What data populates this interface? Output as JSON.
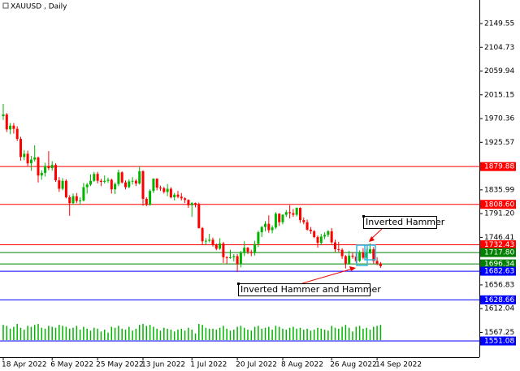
{
  "chart_data": {
    "type": "candlestick",
    "title": "XAUUSD , Daily",
    "categories": [
      "18 Apr 2022",
      null,
      null,
      null,
      null,
      null,
      null,
      null,
      null,
      null,
      null,
      null,
      null,
      null,
      "6 May 2022",
      null,
      null,
      null,
      null,
      null,
      null,
      null,
      null,
      null,
      null,
      null,
      null,
      "25 May 2022",
      null,
      null,
      null,
      null,
      null,
      null,
      null,
      null,
      null,
      null,
      null,
      null,
      "13 Jun 2022",
      null,
      null,
      null,
      null,
      null,
      null,
      null,
      null,
      null,
      null,
      null,
      null,
      null,
      "1 Jul 2022",
      null,
      null,
      null,
      null,
      null,
      null,
      null,
      null,
      null,
      null,
      null,
      null,
      "20 Jul 2022",
      null,
      null,
      null,
      null,
      null,
      null,
      null,
      null,
      null,
      null,
      null,
      null,
      "8 Aug 2022",
      null,
      null,
      null,
      null,
      null,
      null,
      null,
      null,
      null,
      null,
      null,
      null,
      null,
      "26 Aug 2022",
      null,
      null,
      null,
      null,
      null,
      null,
      null,
      null,
      null,
      null,
      null,
      null,
      "14 Sep 2022",
      null
    ],
    "open": [
      1975,
      1978,
      1950,
      1957,
      1951,
      1932,
      1898,
      1904,
      1886,
      1893,
      1897,
      1863,
      1868,
      1881,
      1877,
      1883,
      1854,
      1838,
      1853,
      1822,
      1811,
      1824,
      1815,
      1816,
      1841,
      1846,
      1853,
      1866,
      1853,
      1851,
      1853,
      1855,
      1837,
      1847,
      1869,
      1850,
      1841,
      1852,
      1853,
      1848,
      1871,
      1819,
      1808,
      1834,
      1857,
      1840,
      1839,
      1832,
      1838,
      1822,
      1827,
      1823,
      1820,
      1817,
      1807,
      1811,
      1808,
      1764,
      1739,
      1740,
      1742,
      1733,
      1725,
      1735,
      1709,
      1708,
      1709,
      1711,
      1696,
      1718,
      1727,
      1719,
      1717,
      1734,
      1756,
      1766,
      1772,
      1760,
      1765,
      1791,
      1775,
      1789,
      1794,
      1792,
      1789,
      1802,
      1779,
      1775,
      1761,
      1758,
      1747,
      1736,
      1748,
      1751,
      1758,
      1737,
      1724,
      1723,
      1711,
      1697,
      1712,
      1710,
      1702,
      1718,
      1708,
      1717,
      1724,
      1702,
      1697
    ],
    "high": [
      1998,
      1981,
      1962,
      1962,
      1956,
      1936,
      1911,
      1910,
      1900,
      1920,
      1899,
      1873,
      1887,
      1909,
      1890,
      1886,
      1860,
      1858,
      1856,
      1826,
      1829,
      1830,
      1822,
      1849,
      1849,
      1865,
      1870,
      1870,
      1857,
      1863,
      1859,
      1857,
      1850,
      1874,
      1871,
      1854,
      1856,
      1860,
      1856,
      1880,
      1873,
      1822,
      1837,
      1858,
      1858,
      1844,
      1842,
      1847,
      1841,
      1830,
      1834,
      1830,
      1822,
      1818,
      1813,
      1812,
      1812,
      1766,
      1745,
      1753,
      1746,
      1735,
      1745,
      1738,
      1711,
      1723,
      1715,
      1715,
      1721,
      1739,
      1728,
      1723,
      1740,
      1759,
      1768,
      1777,
      1788,
      1769,
      1794,
      1792,
      1790,
      1798,
      1807,
      1800,
      1803,
      1803,
      1784,
      1780,
      1766,
      1760,
      1750,
      1753,
      1756,
      1760,
      1764,
      1742,
      1738,
      1726,
      1713,
      1721,
      1718,
      1718,
      1722,
      1726,
      1725,
      1735,
      1728,
      1709,
      1700
    ],
    "low": [
      1968,
      1945,
      1941,
      1942,
      1928,
      1891,
      1892,
      1881,
      1872,
      1889,
      1850,
      1855,
      1861,
      1873,
      1872,
      1851,
      1832,
      1835,
      1820,
      1787,
      1808,
      1811,
      1808,
      1814,
      1829,
      1843,
      1851,
      1848,
      1843,
      1848,
      1849,
      1829,
      1828,
      1843,
      1848,
      1837,
      1839,
      1846,
      1843,
      1846,
      1806,
      1805,
      1806,
      1830,
      1835,
      1834,
      1829,
      1824,
      1820,
      1816,
      1820,
      1816,
      1811,
      1802,
      1785,
      1803,
      1763,
      1733,
      1732,
      1737,
      1729,
      1722,
      1723,
      1698,
      1696,
      1706,
      1701,
      1681,
      1690,
      1711,
      1715,
      1711,
      1712,
      1728,
      1747,
      1758,
      1755,
      1754,
      1762,
      1768,
      1771,
      1785,
      1782,
      1785,
      1786,
      1774,
      1771,
      1759,
      1753,
      1745,
      1727,
      1732,
      1743,
      1747,
      1734,
      1719,
      1719,
      1706,
      1688,
      1695,
      1706,
      1698,
      1700,
      1705,
      1705,
      1715,
      1697,
      1694,
      1689
    ],
    "close": [
      1978,
      1950,
      1957,
      1951,
      1932,
      1898,
      1904,
      1886,
      1893,
      1897,
      1863,
      1868,
      1881,
      1877,
      1883,
      1854,
      1838,
      1853,
      1822,
      1811,
      1824,
      1815,
      1816,
      1841,
      1846,
      1853,
      1866,
      1853,
      1851,
      1853,
      1855,
      1837,
      1847,
      1869,
      1850,
      1841,
      1852,
      1853,
      1848,
      1871,
      1819,
      1808,
      1834,
      1857,
      1840,
      1839,
      1832,
      1838,
      1822,
      1827,
      1823,
      1820,
      1817,
      1807,
      1811,
      1808,
      1764,
      1739,
      1740,
      1742,
      1733,
      1725,
      1735,
      1709,
      1708,
      1709,
      1711,
      1696,
      1718,
      1727,
      1719,
      1717,
      1734,
      1756,
      1766,
      1772,
      1760,
      1765,
      1791,
      1775,
      1789,
      1794,
      1792,
      1789,
      1802,
      1779,
      1775,
      1761,
      1758,
      1747,
      1736,
      1748,
      1751,
      1758,
      1737,
      1724,
      1723,
      1711,
      1697,
      1712,
      1710,
      1702,
      1718,
      1708,
      1717,
      1724,
      1702,
      1697,
      1692
    ],
    "volume": [
      160,
      150,
      120,
      140,
      170,
      130,
      110,
      150,
      140,
      160,
      170,
      130,
      120,
      150,
      140,
      130,
      160,
      150,
      140,
      120,
      130,
      150,
      110,
      140,
      120,
      100,
      130,
      120,
      90,
      110,
      80,
      140,
      130,
      150,
      120,
      110,
      140,
      100,
      120,
      160,
      170,
      150,
      160,
      140,
      120,
      100,
      130,
      120,
      110,
      90,
      110,
      120,
      100,
      130,
      110,
      70,
      170,
      160,
      130,
      120,
      120,
      110,
      130,
      150,
      120,
      100,
      110,
      140,
      150,
      130,
      110,
      100,
      140,
      150,
      120,
      130,
      140,
      110,
      150,
      140,
      120,
      110,
      130,
      140,
      120,
      130,
      110,
      120,
      100,
      110,
      130,
      120,
      110,
      100,
      150,
      130,
      120,
      140,
      160,
      130,
      90,
      140,
      150,
      120,
      130,
      110,
      140,
      150,
      160
    ],
    "up_color": "#00b400",
    "down_color": "#ff0000",
    "volume_color": "#00b400",
    "ylim": [
      1520.5,
      2193.9
    ],
    "yticks": [
      2149.55,
      2104.73,
      2059.94,
      2015.15,
      1970.36,
      1925.57,
      1835.99,
      {
        "value": 1791.2,
        "label": "1791.20"
      },
      1746.41,
      1656.83,
      1612.04,
      1567.25
    ],
    "levels": [
      {
        "value": 1879.88,
        "color": "#ff0000"
      },
      {
        "value": 1808.6,
        "label": "1808.60",
        "color": "#ff0000"
      },
      {
        "value": 1732.43,
        "color": "#ff0000"
      },
      {
        "value": 1717.8,
        "label": "1717.80",
        "color": "#008000"
      },
      {
        "value": 1696.34,
        "color": "#008000"
      },
      {
        "value": 1682.63,
        "color": "#0000ff"
      },
      {
        "value": 1628.66,
        "color": "#0000ff"
      },
      {
        "value": 1551.08,
        "color": "#0000ff"
      }
    ],
    "annotations": [
      "Inverted Hammer",
      "Inverted Hammer and Hammer"
    ]
  }
}
